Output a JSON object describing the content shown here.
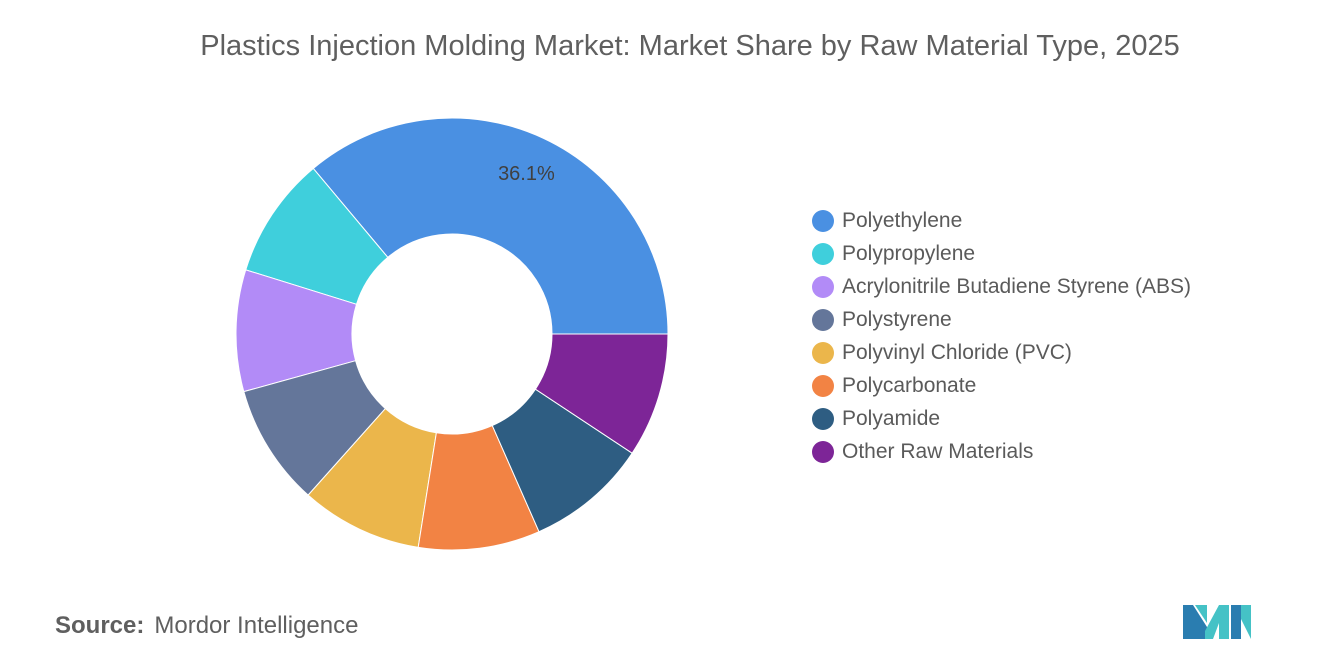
{
  "chart_data": {
    "type": "pie",
    "title": "Plastics Injection Molding Market: Market Share by Raw Material Type, 2025",
    "donut": true,
    "categories": [
      "Polyethylene",
      "Polypropylene",
      "Acrylonitrile Butadiene Styrene (ABS)",
      "Polystyrene",
      "Polyvinyl Chloride (PVC)",
      "Polycarbonate",
      "Polyamide",
      "Other Raw Materials"
    ],
    "values": [
      36.1,
      9.1,
      9.1,
      9.1,
      9.1,
      9.1,
      9.1,
      9.3
    ],
    "data_labels": [
      "36.1%",
      "",
      "",
      "",
      "",
      "",
      "",
      ""
    ],
    "colors": [
      "#4a90e2",
      "#3fcfdc",
      "#b28bf7",
      "#64769a",
      "#ebb64b",
      "#f28344",
      "#2e5d82",
      "#7d2597"
    ],
    "legend_position": "right"
  },
  "source": {
    "label": "Source:",
    "text": "Mordor Intelligence"
  },
  "logo": {
    "icon": "mordor-intelligence-logo-icon",
    "colors": [
      "#2a7db0",
      "#45c2c6"
    ]
  }
}
